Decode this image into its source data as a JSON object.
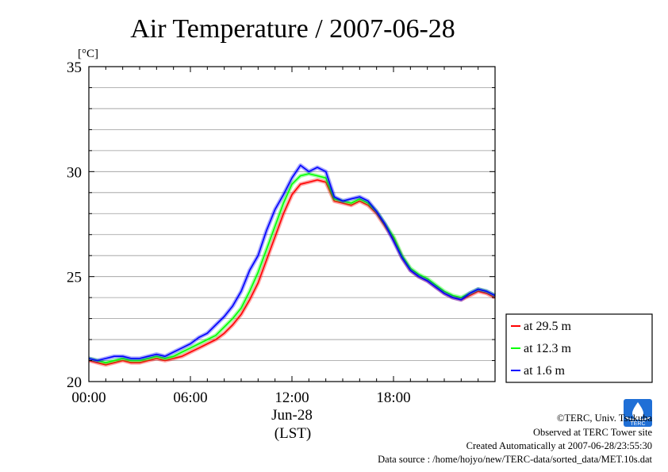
{
  "chart_data": {
    "type": "line",
    "title": "Air Temperature / 2007-06-28",
    "ylabel": "[°C]",
    "xlabel": "(LST)",
    "date_label": "Jun-28",
    "xlim": [
      "00:00",
      "24:00"
    ],
    "ylim": [
      20,
      35
    ],
    "x_ticks": [
      "00:00",
      "06:00",
      "12:00",
      "18:00"
    ],
    "y_ticks": [
      20,
      25,
      30,
      35
    ],
    "grid": true,
    "legend_position": "right",
    "x": [
      "00:00",
      "00:30",
      "01:00",
      "01:30",
      "02:00",
      "02:30",
      "03:00",
      "03:30",
      "04:00",
      "04:30",
      "05:00",
      "05:30",
      "06:00",
      "06:30",
      "07:00",
      "07:30",
      "08:00",
      "08:30",
      "09:00",
      "09:30",
      "10:00",
      "10:30",
      "11:00",
      "11:30",
      "12:00",
      "12:30",
      "13:00",
      "13:30",
      "14:00",
      "14:30",
      "15:00",
      "15:30",
      "16:00",
      "16:30",
      "17:00",
      "17:30",
      "18:00",
      "18:30",
      "19:00",
      "19:30",
      "20:00",
      "20:30",
      "21:00",
      "21:30",
      "22:00",
      "22:30",
      "23:00",
      "23:30",
      "24:00"
    ],
    "series": [
      {
        "name": "at 29.5 m",
        "color": "#ff0000",
        "values": [
          21.0,
          20.9,
          20.8,
          20.9,
          21.0,
          20.9,
          20.9,
          21.0,
          21.1,
          21.0,
          21.1,
          21.2,
          21.4,
          21.6,
          21.8,
          22.0,
          22.3,
          22.7,
          23.2,
          23.9,
          24.7,
          25.8,
          26.9,
          28.0,
          28.9,
          29.4,
          29.5,
          29.6,
          29.5,
          28.6,
          28.5,
          28.4,
          28.6,
          28.4,
          28.0,
          27.4,
          26.8,
          25.9,
          25.3,
          25.0,
          24.8,
          24.5,
          24.2,
          24.0,
          23.9,
          24.1,
          24.3,
          24.2,
          24.0
        ]
      },
      {
        "name": "at 12.3 m",
        "color": "#00ff00",
        "values": [
          21.1,
          21.0,
          20.9,
          21.0,
          21.1,
          21.0,
          21.0,
          21.1,
          21.2,
          21.1,
          21.2,
          21.4,
          21.6,
          21.8,
          22.0,
          22.2,
          22.6,
          23.0,
          23.5,
          24.3,
          25.2,
          26.3,
          27.4,
          28.5,
          29.4,
          29.8,
          29.9,
          29.8,
          29.7,
          28.7,
          28.6,
          28.5,
          28.7,
          28.5,
          28.1,
          27.5,
          26.9,
          26.0,
          25.4,
          25.1,
          24.9,
          24.6,
          24.3,
          24.1,
          24.0,
          24.2,
          24.4,
          24.3,
          24.1
        ]
      },
      {
        "name": "at 1.6 m",
        "color": "#0000ff",
        "values": [
          21.1,
          21.0,
          21.1,
          21.2,
          21.2,
          21.1,
          21.1,
          21.2,
          21.3,
          21.2,
          21.4,
          21.6,
          21.8,
          22.1,
          22.3,
          22.7,
          23.1,
          23.6,
          24.3,
          25.3,
          26.0,
          27.2,
          28.2,
          28.9,
          29.7,
          30.3,
          30.0,
          30.2,
          30.0,
          28.8,
          28.6,
          28.7,
          28.8,
          28.6,
          28.1,
          27.5,
          26.7,
          25.9,
          25.3,
          25.0,
          24.8,
          24.5,
          24.2,
          24.0,
          23.9,
          24.2,
          24.4,
          24.3,
          24.1
        ]
      }
    ]
  },
  "footer": {
    "copyright": "©TERC, Univ. Tsukuba",
    "observed": "Observed at TERC Tower site",
    "created": "Created Automatically at 2007-06-28/23:55:30",
    "source": "Data source : /home/hojyo/new/TERC-data/sorted_data/MET.10s.dat"
  },
  "logo": {
    "text": "TERC",
    "color": "#1f6fd6"
  }
}
